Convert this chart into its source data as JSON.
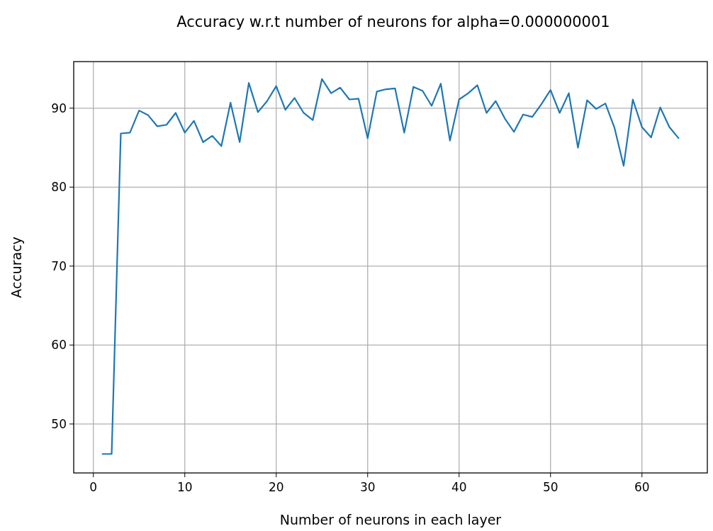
{
  "chart_data": {
    "type": "line",
    "title": "Accuracy w.r.t number of neurons for alpha=0.000000001",
    "xlabel": "Number of neurons in each layer",
    "ylabel": "Accuracy",
    "x": [
      1,
      2,
      3,
      4,
      5,
      6,
      7,
      8,
      9,
      10,
      11,
      12,
      13,
      14,
      15,
      16,
      17,
      18,
      19,
      20,
      21,
      22,
      23,
      24,
      25,
      26,
      27,
      28,
      29,
      30,
      31,
      32,
      33,
      34,
      35,
      36,
      37,
      38,
      39,
      40,
      41,
      42,
      43,
      44,
      45,
      46,
      47,
      48,
      49,
      50,
      51,
      52,
      53,
      54,
      55,
      56,
      57,
      58,
      59,
      60,
      61,
      62,
      63,
      64
    ],
    "series": [
      {
        "color": "#1f77b4",
        "values": [
          46.2,
          46.2,
          86.8,
          86.9,
          89.7,
          89.1,
          87.7,
          87.9,
          89.4,
          86.9,
          88.4,
          85.7,
          86.5,
          85.2,
          90.7,
          85.7,
          93.2,
          89.5,
          90.9,
          92.8,
          89.8,
          91.3,
          89.4,
          88.5,
          93.7,
          91.9,
          92.6,
          91.1,
          91.2,
          86.2,
          92.1,
          92.4,
          92.5,
          86.9,
          92.7,
          92.2,
          90.3,
          93.1,
          85.9,
          91.1,
          91.9,
          92.9,
          89.4,
          90.9,
          88.7,
          87.0,
          89.2,
          88.9,
          90.5,
          92.3,
          89.4,
          91.9,
          85.0,
          91.0,
          89.9,
          90.6,
          87.5,
          82.7,
          91.1,
          87.6,
          86.3,
          90.1,
          87.6,
          86.2
        ]
      }
    ],
    "xlim": [
      -2.15,
      67.15
    ],
    "ylim": [
      43.8,
      95.9
    ],
    "xticks": [
      0,
      10,
      20,
      30,
      40,
      50,
      60
    ],
    "yticks": [
      50,
      60,
      70,
      80,
      90
    ],
    "grid": true,
    "line_style": "solid",
    "marker": "none"
  }
}
